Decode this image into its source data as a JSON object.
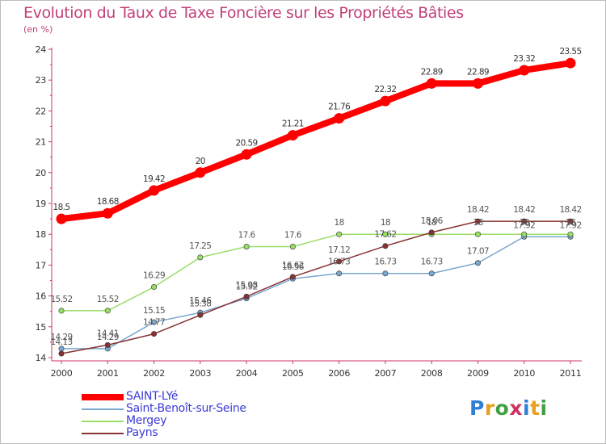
{
  "header": {
    "title": "Evolution du Taux de Taxe Foncière sur les Propriétés Bâties",
    "unit": "(en %)"
  },
  "logo": {
    "text": "Proxiti",
    "letters": [
      "P",
      "r",
      "o",
      "x",
      "i",
      "t",
      "i"
    ],
    "letter_colors": [
      "#2f7ed8",
      "#e8a020",
      "#40a040",
      "#d03060",
      "#2f7ed8",
      "#e8a020",
      "#40a040"
    ]
  },
  "chart_data": {
    "type": "line",
    "title": "Evolution du Taux de Taxe Foncière sur les Propriétés Bâties",
    "ylabel": "(en %)",
    "xlabel": "",
    "ylim": [
      14,
      24
    ],
    "yticks": [
      "14",
      "15",
      "16",
      "17",
      "18",
      "19",
      "20",
      "21",
      "22",
      "23",
      "24"
    ],
    "categories": [
      "2000",
      "2001",
      "2002",
      "2003",
      "2004",
      "2005",
      "2006",
      "2007",
      "2008",
      "2009",
      "2010",
      "2011"
    ],
    "grid": false,
    "legend_position": "bottom-left",
    "series": [
      {
        "name": "SAINT-LYé",
        "color": "#ff0000",
        "values": [
          18.5,
          18.68,
          19.42,
          20,
          20.59,
          21.21,
          21.76,
          22.32,
          22.89,
          22.89,
          23.32,
          23.55
        ],
        "labels": [
          "18.5",
          "18.68",
          "19.42",
          "20",
          "20.59",
          "21.21",
          "21.76",
          "22.32",
          "22.89",
          "22.89",
          "23.32",
          "23.55"
        ]
      },
      {
        "name": "Saint-Benoît-sur-Seine",
        "color": "#7aa7cf",
        "values": [
          14.29,
          14.29,
          15.15,
          15.46,
          15.92,
          16.56,
          16.73,
          16.73,
          16.73,
          17.07,
          17.92,
          17.92
        ],
        "labels": [
          "14.29",
          "14.29",
          "15.15",
          "15.46",
          "15.92",
          "16.56",
          "16.73",
          "16.73",
          "16.73",
          "17.07",
          "17.92",
          "17.92"
        ]
      },
      {
        "name": "Mergey",
        "color": "#99dd66",
        "values": [
          15.52,
          15.52,
          16.29,
          17.25,
          17.6,
          17.6,
          18,
          18,
          18,
          18,
          18,
          18
        ],
        "labels": [
          "15.52",
          "15.52",
          "16.29",
          "17.25",
          "17.6",
          "17.6",
          "18",
          "18",
          "18",
          "18",
          "18",
          "18"
        ]
      },
      {
        "name": "Payns",
        "color": "#883333",
        "values": [
          14.13,
          14.41,
          14.77,
          15.38,
          15.98,
          16.62,
          17.12,
          17.62,
          18.06,
          18.42,
          18.42,
          18.42
        ],
        "labels": [
          "14.13",
          "14.41",
          "14.77",
          "15.38",
          "15.98",
          "16.62",
          "17.12",
          "17.62",
          "18.06",
          "18.42",
          "18.42",
          "18.42"
        ]
      }
    ]
  }
}
